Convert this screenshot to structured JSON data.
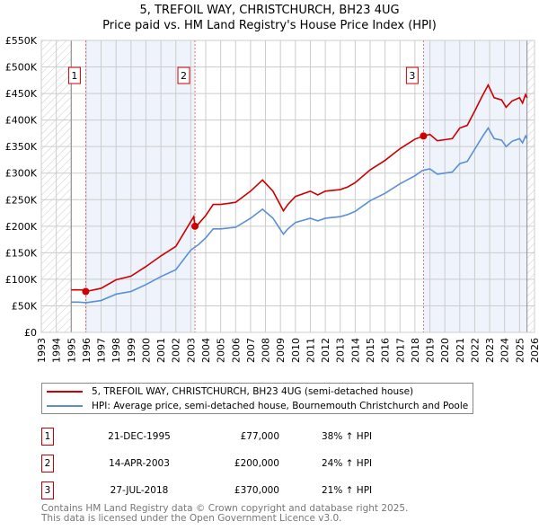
{
  "chart_data": {
    "type": "line",
    "title": "5, TREFOIL WAY, CHRISTCHURCH, BH23 4UG",
    "subtitle": "Price paid vs. HM Land Registry's House Price Index (HPI)",
    "xlim": [
      1993,
      2026
    ],
    "ylim": [
      0,
      550000
    ],
    "x_ticks": [
      "1993",
      "1994",
      "1995",
      "1996",
      "1997",
      "1998",
      "1999",
      "2000",
      "2001",
      "2002",
      "2003",
      "2004",
      "2005",
      "2006",
      "2007",
      "2008",
      "2009",
      "2010",
      "2011",
      "2012",
      "2013",
      "2014",
      "2015",
      "2016",
      "2017",
      "2018",
      "2019",
      "2020",
      "2021",
      "2022",
      "2023",
      "2024",
      "2025",
      "2026"
    ],
    "y_ticks": [
      {
        "v": 0,
        "label": "£0"
      },
      {
        "v": 50000,
        "label": "£50K"
      },
      {
        "v": 100000,
        "label": "£100K"
      },
      {
        "v": 150000,
        "label": "£150K"
      },
      {
        "v": 200000,
        "label": "£200K"
      },
      {
        "v": 250000,
        "label": "£250K"
      },
      {
        "v": 300000,
        "label": "£300K"
      },
      {
        "v": 350000,
        "label": "£350K"
      },
      {
        "v": 400000,
        "label": "£400K"
      },
      {
        "v": 450000,
        "label": "£450K"
      },
      {
        "v": 500000,
        "label": "£500K"
      },
      {
        "v": 550000,
        "label": "£550K"
      }
    ],
    "grid": true,
    "data_range": [
      1995,
      2025.5
    ],
    "shaded_bands": [
      [
        1995.97,
        2003.28
      ],
      [
        2018.57,
        2025.5
      ]
    ],
    "series": [
      {
        "name": "5, TREFOIL WAY, CHRISTCHURCH, BH23 4UG (semi-detached house)",
        "color": "#cc0000",
        "x": [
          1995,
          1995.9,
          1995.97,
          1996,
          1997,
          1998,
          1999,
          2000,
          2001,
          2002,
          2003.2,
          2003.28,
          2003.5,
          2004,
          2004.5,
          2005,
          2006,
          2007,
          2007.8,
          2008.5,
          2009.2,
          2009.5,
          2010,
          2011,
          2011.5,
          2012,
          2013,
          2013.5,
          2014,
          2015,
          2016,
          2017,
          2018,
          2018.57,
          2019,
          2019.5,
          2020,
          2020.5,
          2021,
          2021.5,
          2022,
          2022.5,
          2022.9,
          2023.3,
          2023.8,
          2024.1,
          2024.5,
          2025,
          2025.2,
          2025.4,
          2025.5
        ],
        "y": [
          80000,
          80000,
          77000,
          77000,
          83000,
          99000,
          106000,
          124000,
          144000,
          162000,
          218000,
          200000,
          204000,
          220000,
          241000,
          241000,
          245000,
          266000,
          287000,
          266000,
          229000,
          241000,
          256000,
          266000,
          259000,
          266000,
          269000,
          274000,
          282000,
          306000,
          324000,
          346000,
          364000,
          370000,
          373000,
          361000,
          363000,
          365000,
          385000,
          390000,
          417000,
          445000,
          466000,
          442000,
          438000,
          424000,
          436000,
          442000,
          432000,
          448000,
          442000
        ]
      },
      {
        "name": "HPI: Average price, semi-detached house, Bournemouth Christchurch and Poole",
        "color": "#5b8fd4",
        "x": [
          1995,
          1995.5,
          1996,
          1997,
          1998,
          1999,
          2000,
          2001,
          2002,
          2003,
          2003.5,
          2004,
          2004.5,
          2005,
          2006,
          2007,
          2007.8,
          2008.5,
          2009.2,
          2009.5,
          2010,
          2011,
          2011.5,
          2012,
          2013,
          2013.5,
          2014,
          2015,
          2016,
          2017,
          2018,
          2018.5,
          2019,
          2019.5,
          2020,
          2020.5,
          2021,
          2021.5,
          2022,
          2022.5,
          2022.9,
          2023.3,
          2023.8,
          2024.1,
          2024.5,
          2025,
          2025.2,
          2025.4,
          2025.5
        ],
        "y": [
          57000,
          57000,
          56000,
          60000,
          72000,
          77000,
          90000,
          105000,
          118000,
          155000,
          165000,
          178000,
          195000,
          195000,
          198000,
          215000,
          232000,
          215000,
          185000,
          195000,
          207000,
          215000,
          210000,
          215000,
          218000,
          222000,
          228000,
          248000,
          262000,
          280000,
          295000,
          305000,
          308000,
          298000,
          300000,
          302000,
          318000,
          322000,
          345000,
          368000,
          385000,
          365000,
          362000,
          350000,
          360000,
          365000,
          357000,
          370000,
          365000
        ]
      }
    ],
    "sales": [
      {
        "n": "1",
        "x": 1995.97,
        "date": "21-DEC-1995",
        "price_value": 77000,
        "price": "£77,000",
        "hpi": "38% ↑ HPI"
      },
      {
        "n": "2",
        "x": 2003.28,
        "date": "14-APR-2003",
        "price_value": 200000,
        "price": "£200,000",
        "hpi": "24% ↑ HPI"
      },
      {
        "n": "3",
        "x": 2018.57,
        "date": "27-JUL-2018",
        "price_value": 370000,
        "price": "£370,000",
        "hpi": "21% ↑ HPI"
      }
    ],
    "legend_placement": "below"
  },
  "footer": {
    "line1": "Contains HM Land Registry data © Crown copyright and database right 2025.",
    "line2": "This data is licensed under the Open Government Licence v3.0."
  }
}
